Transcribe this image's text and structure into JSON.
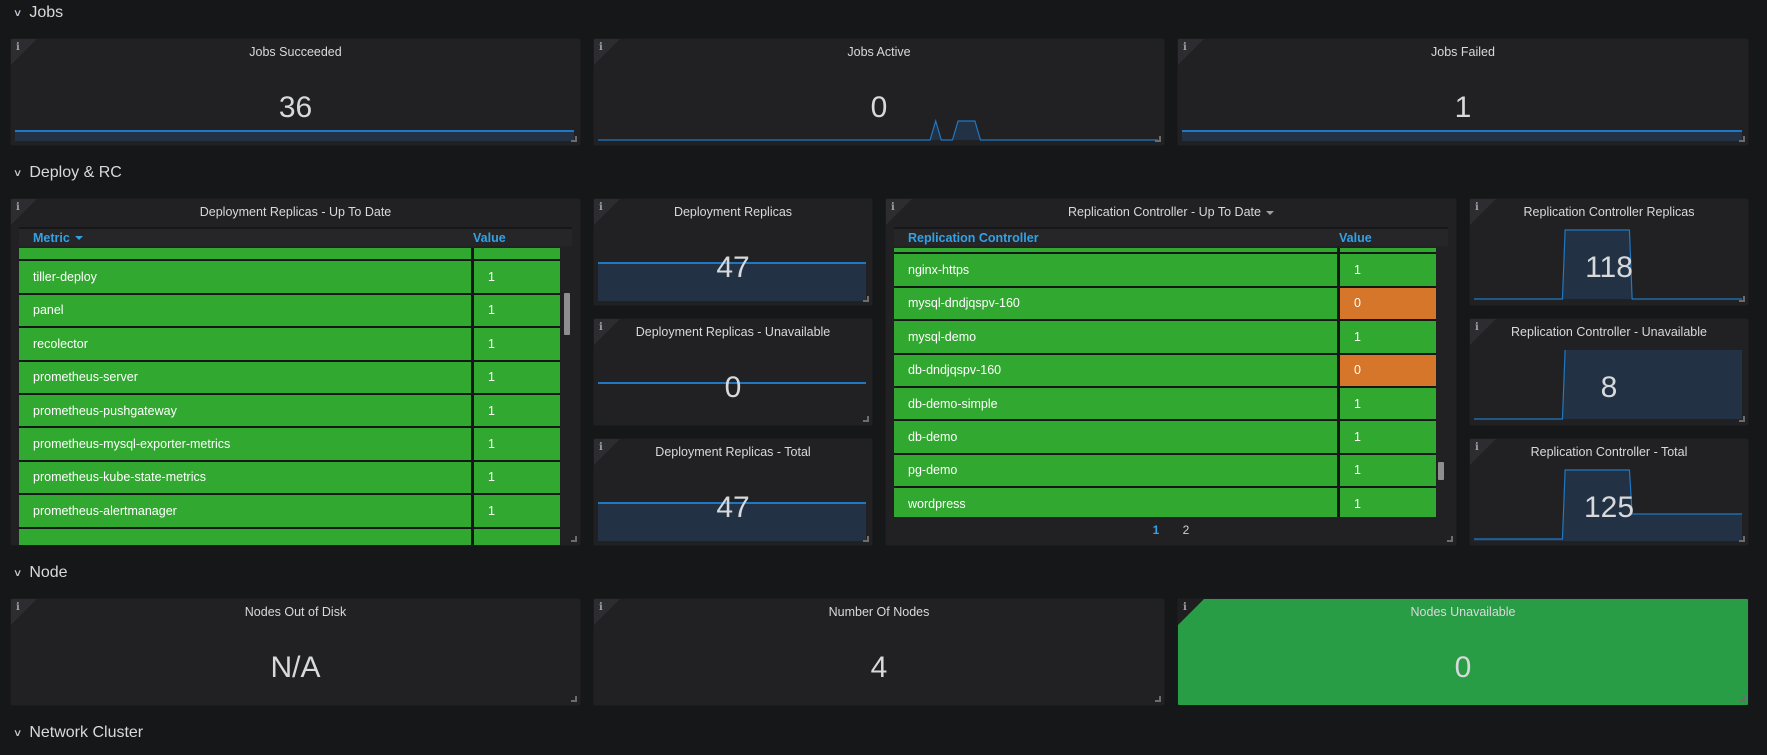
{
  "rows": {
    "jobs": "Jobs",
    "deploy": "Deploy & RC",
    "node": "Node",
    "network": "Network Cluster"
  },
  "panels": {
    "jobs_succeeded": {
      "title": "Jobs Succeeded",
      "value": "36"
    },
    "jobs_active": {
      "title": "Jobs Active",
      "value": "0"
    },
    "jobs_failed": {
      "title": "Jobs Failed",
      "value": "1"
    },
    "deploy_uptodate": {
      "title": "Deployment Replicas - Up To Date",
      "columns": [
        "Metric",
        "Value"
      ],
      "sort_column": "Metric",
      "rows": [
        {
          "metric": "tiller-deploy",
          "value": "1"
        },
        {
          "metric": "panel",
          "value": "1"
        },
        {
          "metric": "recolector",
          "value": "1"
        },
        {
          "metric": "prometheus-server",
          "value": "1"
        },
        {
          "metric": "prometheus-pushgateway",
          "value": "1"
        },
        {
          "metric": "prometheus-mysql-exporter-metrics",
          "value": "1"
        },
        {
          "metric": "prometheus-kube-state-metrics",
          "value": "1"
        },
        {
          "metric": "prometheus-alertmanager",
          "value": "1"
        }
      ]
    },
    "deploy_replicas": {
      "title": "Deployment Replicas",
      "value": "47"
    },
    "deploy_unavailable": {
      "title": "Deployment Replicas - Unavailable",
      "value": "0"
    },
    "deploy_total": {
      "title": "Deployment Replicas - Total",
      "value": "47"
    },
    "rc_uptodate": {
      "title": "Replication Controller - Up To Date",
      "columns": [
        "Replication Controller",
        "Value"
      ],
      "rows": [
        {
          "name": "nginx-https",
          "value": "1",
          "status": "ok"
        },
        {
          "name": "mysql-dndjqspv-160",
          "value": "0",
          "status": "warn"
        },
        {
          "name": "mysql-demo",
          "value": "1",
          "status": "ok"
        },
        {
          "name": "db-dndjqspv-160",
          "value": "0",
          "status": "warn"
        },
        {
          "name": "db-demo-simple",
          "value": "1",
          "status": "ok"
        },
        {
          "name": "db-demo",
          "value": "1",
          "status": "ok"
        },
        {
          "name": "pg-demo",
          "value": "1",
          "status": "ok"
        },
        {
          "name": "wordpress",
          "value": "1",
          "status": "ok"
        }
      ],
      "pages": [
        "1",
        "2"
      ],
      "current_page": "1"
    },
    "rc_replicas": {
      "title": "Replication Controller Replicas",
      "value": "118"
    },
    "rc_unavailable": {
      "title": "Replication Controller - Unavailable",
      "value": "8"
    },
    "rc_total": {
      "title": "Replication Controller - Total",
      "value": "125"
    },
    "nodes_out_of_disk": {
      "title": "Nodes Out of Disk",
      "value": "N/A"
    },
    "number_of_nodes": {
      "title": "Number Of Nodes",
      "value": "4"
    },
    "nodes_unavailable": {
      "title": "Nodes Unavailable",
      "value": "0"
    }
  },
  "colors": {
    "ok": "#31a82f",
    "warn": "#d6762a",
    "accent": "#33a2e5",
    "spark_line": "#1f78c1",
    "spark_fill": "#223244",
    "green_panel": "#299c46"
  }
}
